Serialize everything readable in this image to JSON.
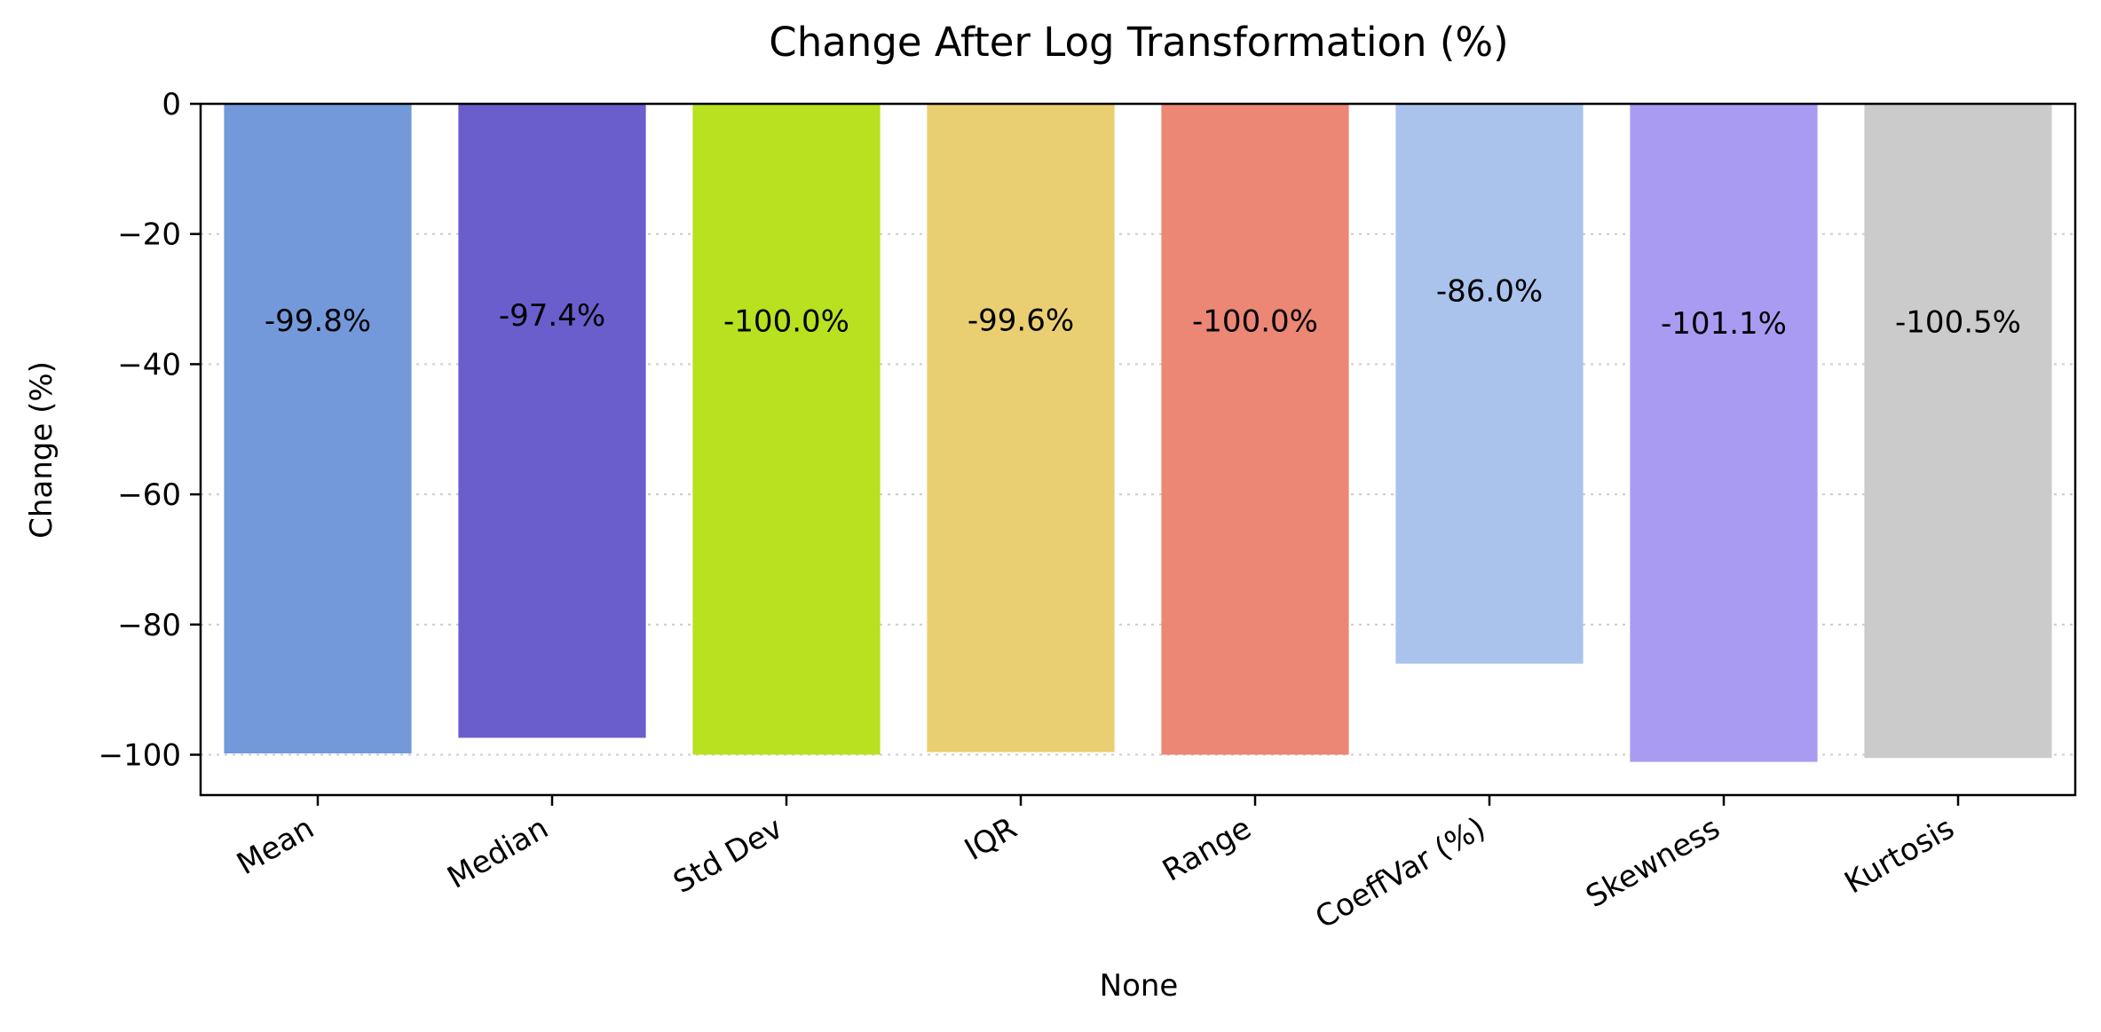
{
  "chart_data": {
    "type": "bar",
    "title": "Change After Log Transformation (%)",
    "xlabel": "None",
    "ylabel": "Change (%)",
    "categories": [
      "Mean",
      "Median",
      "Std Dev",
      "IQR",
      "Range",
      "CoeffVar (%)",
      "Skewness",
      "Kurtosis"
    ],
    "values": [
      -99.8,
      -97.4,
      -100.0,
      -99.6,
      -100.0,
      -86.0,
      -101.1,
      -100.5
    ],
    "data_labels": [
      "-99.8%",
      "-97.4%",
      "-100.0%",
      "-99.6%",
      "-100.0%",
      "-86.0%",
      "-101.1%",
      "-100.5%"
    ],
    "colors": [
      "#7399db",
      "#6a5ecc",
      "#b8e11f",
      "#e9cf71",
      "#ec8775",
      "#aac3ed",
      "#a99bf1",
      "#cbcbcb"
    ],
    "ylim": [
      -106.2,
      0
    ],
    "yticks": [
      0,
      -20,
      -40,
      -60,
      -80,
      -100
    ],
    "ytick_labels": [
      "0",
      "−20",
      "−40",
      "−60",
      "−80",
      "−100"
    ],
    "grid": "y-dotted"
  }
}
